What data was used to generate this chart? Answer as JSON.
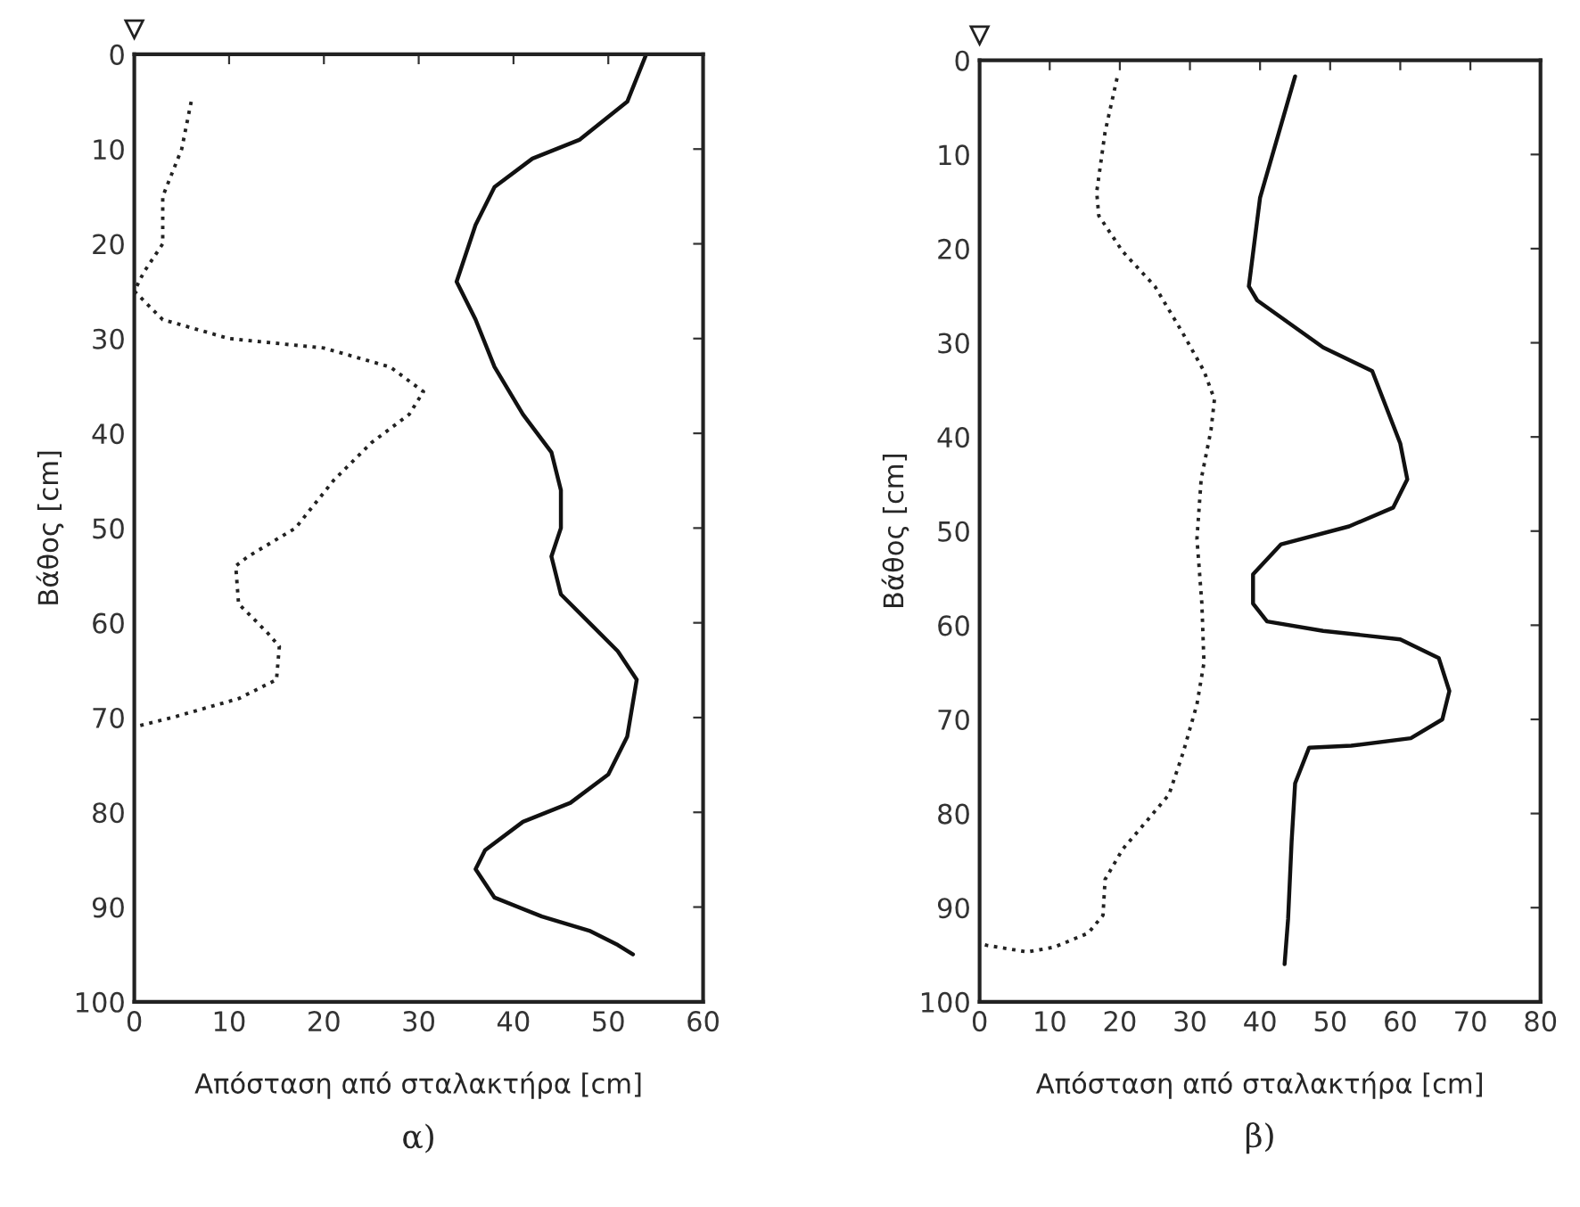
{
  "chart_data": [
    {
      "type": "line",
      "title": "α)",
      "xlabel": "Απόσταση από σταλακτήρα [cm]",
      "ylabel": "Βάθος [cm]",
      "xlim": [
        0,
        60
      ],
      "xticks": [
        0,
        10,
        20,
        30,
        40,
        50,
        60
      ],
      "ylim": [
        100,
        0
      ],
      "yticks": [
        0,
        10,
        20,
        30,
        40,
        50,
        60,
        70,
        80,
        90,
        100
      ],
      "grid": false,
      "legend": false,
      "series": [
        {
          "color": "#222222",
          "line_style": "dotted",
          "x": [
            6,
            5,
            3,
            3,
            1,
            0,
            3,
            10,
            20,
            27,
            30.5,
            29,
            25,
            21,
            17,
            12,
            10.7,
            11,
            14,
            15.3,
            15,
            11,
            4,
            0
          ],
          "values": [
            5,
            10,
            15,
            20,
            23,
            25,
            28,
            30,
            31,
            33,
            35.6,
            38,
            41,
            45,
            50,
            53,
            54,
            58,
            61,
            62.5,
            66,
            68,
            70,
            71
          ]
        },
        {
          "color": "#111111",
          "line_style": "solid",
          "x": [
            54,
            52,
            47,
            42,
            38,
            36,
            34,
            36,
            38,
            41,
            44,
            45,
            45,
            44,
            45,
            48,
            51,
            53,
            52,
            50,
            46,
            41,
            37,
            36,
            38,
            43,
            48,
            51,
            52.6
          ],
          "values": [
            0,
            5,
            9,
            11,
            14,
            18,
            24,
            28,
            33,
            38,
            42,
            46,
            50,
            53,
            57,
            60,
            63,
            66,
            72,
            76,
            79,
            81,
            84,
            86,
            89,
            91,
            92.5,
            94,
            95
          ]
        }
      ]
    },
    {
      "type": "line",
      "title": "β)",
      "xlabel": "Απόσταση από σταλακτήρα [cm]",
      "ylabel": "Βάθος [cm]",
      "xlim": [
        0,
        80
      ],
      "xticks": [
        0,
        10,
        20,
        30,
        40,
        50,
        60,
        70,
        80
      ],
      "ylim": [
        100,
        0
      ],
      "yticks": [
        0,
        10,
        20,
        30,
        40,
        50,
        60,
        70,
        80,
        90,
        100
      ],
      "grid": false,
      "legend": false,
      "series": [
        {
          "color": "#222222",
          "line_style": "dotted",
          "x": [
            19.6,
            17.9,
            16.7,
            17,
            20.4,
            25,
            29,
            32,
            33.5,
            33,
            31.6,
            31,
            31.7,
            32,
            31,
            29,
            27,
            23.6,
            20.4,
            17.9,
            17.6,
            15.5,
            10.6,
            6.8,
            1,
            0
          ],
          "values": [
            1.9,
            7.6,
            14,
            16.5,
            20.3,
            24,
            29,
            33,
            36,
            39.3,
            44.5,
            50.8,
            57.7,
            64,
            68.4,
            73.6,
            78,
            81,
            83.8,
            87,
            90.8,
            92.7,
            94.2,
            94.7,
            94,
            93.8
          ]
        },
        {
          "color": "#111111",
          "line_style": "solid",
          "x": [
            45,
            40,
            38.4,
            39.6,
            49,
            56,
            60,
            61,
            59,
            52.7,
            43,
            39,
            39,
            39,
            41,
            49,
            60,
            65.5,
            67,
            66,
            61.5,
            53,
            47,
            45,
            44.5,
            44,
            43.5
          ],
          "values": [
            1.7,
            14.6,
            24,
            25.5,
            30.5,
            33,
            40.7,
            44.5,
            47.5,
            49.5,
            51.4,
            54.6,
            56.5,
            57.7,
            59.6,
            60.6,
            61.5,
            63.5,
            67,
            70,
            72,
            72.8,
            73,
            76.8,
            83,
            91.2,
            96
          ]
        }
      ]
    }
  ]
}
